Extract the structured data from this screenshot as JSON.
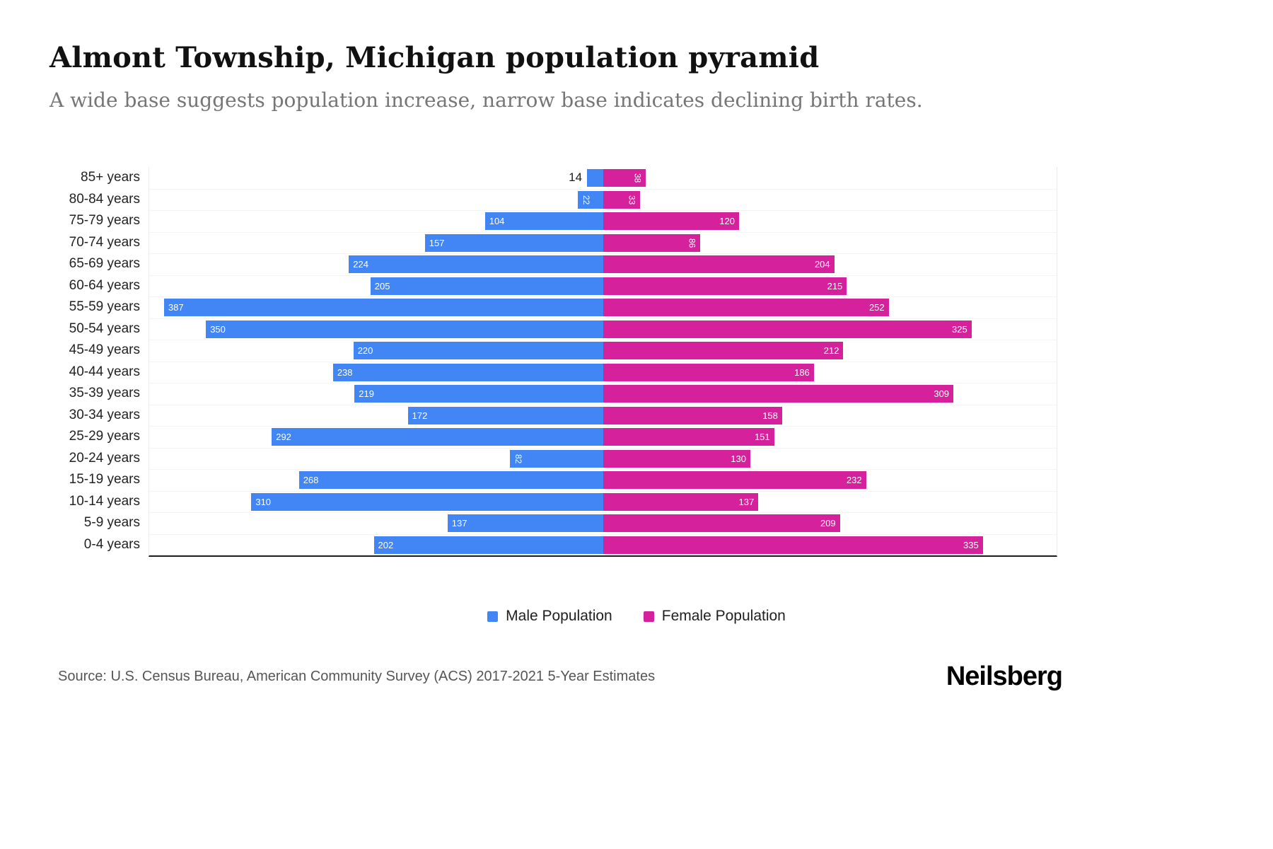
{
  "header": {
    "title": "Almont Township, Michigan population pyramid",
    "subtitle": "A wide base suggests population increase, narrow base indicates declining birth rates."
  },
  "chart_data": {
    "type": "bar",
    "variant": "population-pyramid",
    "orientation": "horizontal",
    "grid": false,
    "legend_position": "bottom",
    "xmax": 400,
    "categories": [
      "85+ years",
      "80-84 years",
      "75-79 years",
      "70-74 years",
      "65-69 years",
      "60-64 years",
      "55-59 years",
      "50-54 years",
      "45-49 years",
      "40-44 years",
      "35-39 years",
      "30-34 years",
      "25-29 years",
      "20-24 years",
      "15-19 years",
      "10-14 years",
      "5-9 years",
      "0-4 years"
    ],
    "series": [
      {
        "name": "Male Population",
        "color": "#4285F4",
        "values": [
          14,
          22,
          104,
          157,
          224,
          205,
          387,
          350,
          220,
          238,
          219,
          172,
          292,
          82,
          268,
          310,
          137,
          202
        ]
      },
      {
        "name": "Female Population",
        "color": "#D6219C",
        "values": [
          38,
          33,
          120,
          86,
          204,
          215,
          252,
          325,
          212,
          186,
          309,
          158,
          151,
          130,
          232,
          137,
          209,
          335
        ]
      }
    ]
  },
  "footer": {
    "source": "Source: U.S. Census Bureau, American Community Survey (ACS) 2017-2021 5-Year Estimates",
    "brand": "Neilsberg"
  }
}
